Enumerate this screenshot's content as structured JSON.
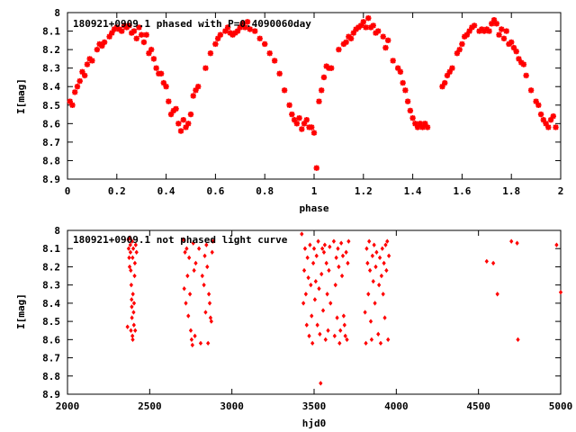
{
  "chart_data": [
    {
      "type": "scatter",
      "title": "180921+0909.1 phased with P=0.4090060day",
      "xlabel": "phase",
      "ylabel": "I[mag]",
      "xlim": [
        0,
        2
      ],
      "ylim": [
        8.9,
        8.0
      ],
      "y_inverted": true,
      "xticks": [
        "0",
        "0.2",
        "0.4",
        "0.6",
        "0.8",
        "1",
        "1.2",
        "1.4",
        "1.6",
        "1.8",
        "2"
      ],
      "yticks": [
        "8",
        "8.1",
        "8.2",
        "8.3",
        "8.4",
        "8.5",
        "8.6",
        "8.7",
        "8.8",
        "8.9"
      ],
      "marker": "star",
      "color": "#ff0000",
      "grid": false,
      "points": [
        [
          0.01,
          8.48
        ],
        [
          0.02,
          8.5
        ],
        [
          0.03,
          8.43
        ],
        [
          0.04,
          8.4
        ],
        [
          0.05,
          8.37
        ],
        [
          0.06,
          8.32
        ],
        [
          0.07,
          8.34
        ],
        [
          0.08,
          8.28
        ],
        [
          0.09,
          8.25
        ],
        [
          0.1,
          8.26
        ],
        [
          0.12,
          8.2
        ],
        [
          0.13,
          8.17
        ],
        [
          0.14,
          8.18
        ],
        [
          0.15,
          8.16
        ],
        [
          0.17,
          8.13
        ],
        [
          0.18,
          8.11
        ],
        [
          0.19,
          8.09
        ],
        [
          0.2,
          8.08
        ],
        [
          0.21,
          8.09
        ],
        [
          0.22,
          8.1
        ],
        [
          0.23,
          8.07
        ],
        [
          0.24,
          8.08
        ],
        [
          0.25,
          8.07
        ],
        [
          0.26,
          8.11
        ],
        [
          0.27,
          8.1
        ],
        [
          0.28,
          8.14
        ],
        [
          0.29,
          8.08
        ],
        [
          0.3,
          8.12
        ],
        [
          0.31,
          8.16
        ],
        [
          0.32,
          8.12
        ],
        [
          0.33,
          8.22
        ],
        [
          0.34,
          8.2
        ],
        [
          0.35,
          8.25
        ],
        [
          0.36,
          8.3
        ],
        [
          0.37,
          8.33
        ],
        [
          0.38,
          8.33
        ],
        [
          0.39,
          8.38
        ],
        [
          0.4,
          8.4
        ],
        [
          0.41,
          8.48
        ],
        [
          0.42,
          8.55
        ],
        [
          0.43,
          8.53
        ],
        [
          0.44,
          8.52
        ],
        [
          0.45,
          8.6
        ],
        [
          0.46,
          8.64
        ],
        [
          0.47,
          8.58
        ],
        [
          0.48,
          8.62
        ],
        [
          0.49,
          8.6
        ],
        [
          0.5,
          8.55
        ],
        [
          0.51,
          8.45
        ],
        [
          0.52,
          8.42
        ],
        [
          0.53,
          8.4
        ],
        [
          0.56,
          8.3
        ],
        [
          0.58,
          8.22
        ],
        [
          0.6,
          8.17
        ],
        [
          0.61,
          8.14
        ],
        [
          0.62,
          8.12
        ],
        [
          0.64,
          8.1
        ],
        [
          0.65,
          8.08
        ],
        [
          0.66,
          8.11
        ],
        [
          0.67,
          8.12
        ],
        [
          0.68,
          8.11
        ],
        [
          0.69,
          8.1
        ],
        [
          0.7,
          8.08
        ],
        [
          0.71,
          8.06
        ],
        [
          0.72,
          8.08
        ],
        [
          0.73,
          8.05
        ],
        [
          0.74,
          8.09
        ],
        [
          0.76,
          8.1
        ],
        [
          0.78,
          8.14
        ],
        [
          0.8,
          8.17
        ],
        [
          0.82,
          8.22
        ],
        [
          0.84,
          8.26
        ],
        [
          0.86,
          8.33
        ],
        [
          0.88,
          8.42
        ],
        [
          0.9,
          8.5
        ],
        [
          0.91,
          8.55
        ],
        [
          0.92,
          8.58
        ],
        [
          0.93,
          8.6
        ],
        [
          0.94,
          8.57
        ],
        [
          0.95,
          8.63
        ],
        [
          0.96,
          8.6
        ],
        [
          0.97,
          8.58
        ],
        [
          0.98,
          8.62
        ],
        [
          0.99,
          8.62
        ],
        [
          1.0,
          8.65
        ],
        [
          1.01,
          8.84
        ],
        [
          1.02,
          8.48
        ],
        [
          1.03,
          8.42
        ],
        [
          1.04,
          8.35
        ],
        [
          1.05,
          8.29
        ],
        [
          1.06,
          8.3
        ],
        [
          1.07,
          8.3
        ],
        [
          1.1,
          8.2
        ],
        [
          1.12,
          8.17
        ],
        [
          1.13,
          8.16
        ],
        [
          1.14,
          8.13
        ],
        [
          1.15,
          8.14
        ],
        [
          1.16,
          8.11
        ],
        [
          1.17,
          8.09
        ],
        [
          1.18,
          8.08
        ],
        [
          1.19,
          8.07
        ],
        [
          1.2,
          8.05
        ],
        [
          1.21,
          8.08
        ],
        [
          1.22,
          8.03
        ],
        [
          1.23,
          8.08
        ],
        [
          1.24,
          8.07
        ],
        [
          1.25,
          8.11
        ],
        [
          1.26,
          8.1
        ],
        [
          1.28,
          8.13
        ],
        [
          1.29,
          8.19
        ],
        [
          1.3,
          8.15
        ],
        [
          1.32,
          8.26
        ],
        [
          1.34,
          8.3
        ],
        [
          1.35,
          8.32
        ],
        [
          1.36,
          8.38
        ],
        [
          1.37,
          8.42
        ],
        [
          1.38,
          8.48
        ],
        [
          1.39,
          8.53
        ],
        [
          1.4,
          8.57
        ],
        [
          1.41,
          8.6
        ],
        [
          1.42,
          8.62
        ],
        [
          1.43,
          8.6
        ],
        [
          1.44,
          8.62
        ],
        [
          1.45,
          8.6
        ],
        [
          1.46,
          8.62
        ],
        [
          1.52,
          8.4
        ],
        [
          1.53,
          8.38
        ],
        [
          1.54,
          8.34
        ],
        [
          1.55,
          8.32
        ],
        [
          1.56,
          8.3
        ],
        [
          1.58,
          8.22
        ],
        [
          1.59,
          8.2
        ],
        [
          1.6,
          8.17
        ],
        [
          1.61,
          8.13
        ],
        [
          1.62,
          8.12
        ],
        [
          1.63,
          8.1
        ],
        [
          1.64,
          8.08
        ],
        [
          1.65,
          8.07
        ],
        [
          1.67,
          8.1
        ],
        [
          1.68,
          8.09
        ],
        [
          1.69,
          8.1
        ],
        [
          1.7,
          8.09
        ],
        [
          1.71,
          8.1
        ],
        [
          1.72,
          8.06
        ],
        [
          1.73,
          8.04
        ],
        [
          1.74,
          8.06
        ],
        [
          1.75,
          8.12
        ],
        [
          1.76,
          8.09
        ],
        [
          1.77,
          8.14
        ],
        [
          1.78,
          8.1
        ],
        [
          1.79,
          8.17
        ],
        [
          1.8,
          8.16
        ],
        [
          1.81,
          8.19
        ],
        [
          1.82,
          8.21
        ],
        [
          1.83,
          8.25
        ],
        [
          1.84,
          8.27
        ],
        [
          1.85,
          8.28
        ],
        [
          1.86,
          8.34
        ],
        [
          1.88,
          8.42
        ],
        [
          1.9,
          8.48
        ],
        [
          1.91,
          8.5
        ],
        [
          1.92,
          8.55
        ],
        [
          1.93,
          8.58
        ],
        [
          1.94,
          8.6
        ],
        [
          1.95,
          8.62
        ],
        [
          1.96,
          8.58
        ],
        [
          1.97,
          8.56
        ],
        [
          1.98,
          8.62
        ]
      ]
    },
    {
      "type": "scatter",
      "title": "180921+0909.1 not phased light curve",
      "xlabel": "hjd0",
      "ylabel": "I[mag]",
      "xlim": [
        2000,
        5000
      ],
      "ylim": [
        8.9,
        8.0
      ],
      "y_inverted": true,
      "xticks": [
        "2000",
        "2500",
        "3000",
        "3500",
        "4000",
        "4500",
        "5000"
      ],
      "yticks": [
        "8",
        "8.1",
        "8.2",
        "8.3",
        "8.4",
        "8.5",
        "8.6",
        "8.7",
        "8.8",
        "8.9"
      ],
      "marker": "diamond",
      "color": "#ff0000",
      "grid": false,
      "points": [
        [
          2365,
          8.53
        ],
        [
          2370,
          8.05
        ],
        [
          2372,
          8.1
        ],
        [
          2375,
          8.15
        ],
        [
          2378,
          8.2
        ],
        [
          2380,
          8.04
        ],
        [
          2382,
          8.08
        ],
        [
          2383,
          8.12
        ],
        [
          2385,
          8.22
        ],
        [
          2386,
          8.55
        ],
        [
          2388,
          8.3
        ],
        [
          2390,
          8.38
        ],
        [
          2391,
          8.42
        ],
        [
          2392,
          8.48
        ],
        [
          2393,
          8.06
        ],
        [
          2395,
          8.58
        ],
        [
          2396,
          8.15
        ],
        [
          2397,
          8.6
        ],
        [
          2398,
          8.35
        ],
        [
          2400,
          8.1
        ],
        [
          2402,
          8.45
        ],
        [
          2404,
          8.52
        ],
        [
          2405,
          8.4
        ],
        [
          2408,
          8.25
        ],
        [
          2410,
          8.18
        ],
        [
          2412,
          8.55
        ],
        [
          2415,
          8.08
        ],
        [
          2420,
          8.12
        ],
        [
          2705,
          8.05
        ],
        [
          2710,
          8.32
        ],
        [
          2715,
          8.12
        ],
        [
          2720,
          8.4
        ],
        [
          2725,
          8.1
        ],
        [
          2730,
          8.25
        ],
        [
          2735,
          8.47
        ],
        [
          2740,
          8.15
        ],
        [
          2745,
          8.35
        ],
        [
          2750,
          8.55
        ],
        [
          2755,
          8.6
        ],
        [
          2760,
          8.63
        ],
        [
          2765,
          8.07
        ],
        [
          2770,
          8.22
        ],
        [
          2775,
          8.58
        ],
        [
          2780,
          8.18
        ],
        [
          2800,
          8.1
        ],
        [
          2810,
          8.62
        ],
        [
          2820,
          8.25
        ],
        [
          2830,
          8.3
        ],
        [
          2835,
          8.14
        ],
        [
          2840,
          8.45
        ],
        [
          2845,
          8.08
        ],
        [
          2850,
          8.2
        ],
        [
          2855,
          8.62
        ],
        [
          2860,
          8.35
        ],
        [
          2865,
          8.4
        ],
        [
          2870,
          8.48
        ],
        [
          2875,
          8.5
        ],
        [
          2880,
          8.12
        ],
        [
          2885,
          8.06
        ],
        [
          3425,
          8.02
        ],
        [
          3435,
          8.4
        ],
        [
          3440,
          8.22
        ],
        [
          3445,
          8.1
        ],
        [
          3450,
          8.35
        ],
        [
          3455,
          8.52
        ],
        [
          3460,
          8.15
        ],
        [
          3465,
          8.26
        ],
        [
          3470,
          8.58
        ],
        [
          3475,
          8.08
        ],
        [
          3480,
          8.3
        ],
        [
          3485,
          8.47
        ],
        [
          3490,
          8.62
        ],
        [
          3495,
          8.18
        ],
        [
          3500,
          8.1
        ],
        [
          3505,
          8.38
        ],
        [
          3510,
          8.28
        ],
        [
          3515,
          8.14
        ],
        [
          3520,
          8.52
        ],
        [
          3525,
          8.06
        ],
        [
          3530,
          8.32
        ],
        [
          3535,
          8.57
        ],
        [
          3540,
          8.84
        ],
        [
          3545,
          8.24
        ],
        [
          3550,
          8.1
        ],
        [
          3555,
          8.44
        ],
        [
          3560,
          8.12
        ],
        [
          3565,
          8.08
        ],
        [
          3570,
          8.6
        ],
        [
          3575,
          8.18
        ],
        [
          3580,
          8.35
        ],
        [
          3585,
          8.55
        ],
        [
          3590,
          8.22
        ],
        [
          3595,
          8.09
        ],
        [
          3600,
          8.4
        ],
        [
          3620,
          8.06
        ],
        [
          3625,
          8.58
        ],
        [
          3630,
          8.3
        ],
        [
          3635,
          8.15
        ],
        [
          3640,
          8.48
        ],
        [
          3645,
          8.1
        ],
        [
          3650,
          8.2
        ],
        [
          3655,
          8.62
        ],
        [
          3660,
          8.55
        ],
        [
          3665,
          8.07
        ],
        [
          3670,
          8.25
        ],
        [
          3675,
          8.14
        ],
        [
          3680,
          8.47
        ],
        [
          3685,
          8.52
        ],
        [
          3690,
          8.58
        ],
        [
          3695,
          8.12
        ],
        [
          3700,
          8.6
        ],
        [
          3705,
          8.18
        ],
        [
          3710,
          8.06
        ],
        [
          3810,
          8.45
        ],
        [
          3815,
          8.62
        ],
        [
          3820,
          8.1
        ],
        [
          3825,
          8.18
        ],
        [
          3830,
          8.35
        ],
        [
          3835,
          8.06
        ],
        [
          3840,
          8.22
        ],
        [
          3845,
          8.5
        ],
        [
          3850,
          8.6
        ],
        [
          3855,
          8.14
        ],
        [
          3860,
          8.28
        ],
        [
          3865,
          8.08
        ],
        [
          3870,
          8.4
        ],
        [
          3875,
          8.2
        ],
        [
          3880,
          8.12
        ],
        [
          3890,
          8.57
        ],
        [
          3895,
          8.3
        ],
        [
          3900,
          8.15
        ],
        [
          3905,
          8.62
        ],
        [
          3910,
          8.25
        ],
        [
          3915,
          8.1
        ],
        [
          3920,
          8.35
        ],
        [
          3925,
          8.18
        ],
        [
          3930,
          8.48
        ],
        [
          3935,
          8.08
        ],
        [
          3940,
          8.22
        ],
        [
          3945,
          8.06
        ],
        [
          3950,
          8.6
        ],
        [
          3955,
          8.14
        ],
        [
          4550,
          8.17
        ],
        [
          4590,
          8.18
        ],
        [
          4615,
          8.35
        ],
        [
          4700,
          8.06
        ],
        [
          4735,
          8.07
        ],
        [
          4740,
          8.6
        ],
        [
          4975,
          8.08
        ],
        [
          5000,
          8.34
        ]
      ]
    }
  ]
}
